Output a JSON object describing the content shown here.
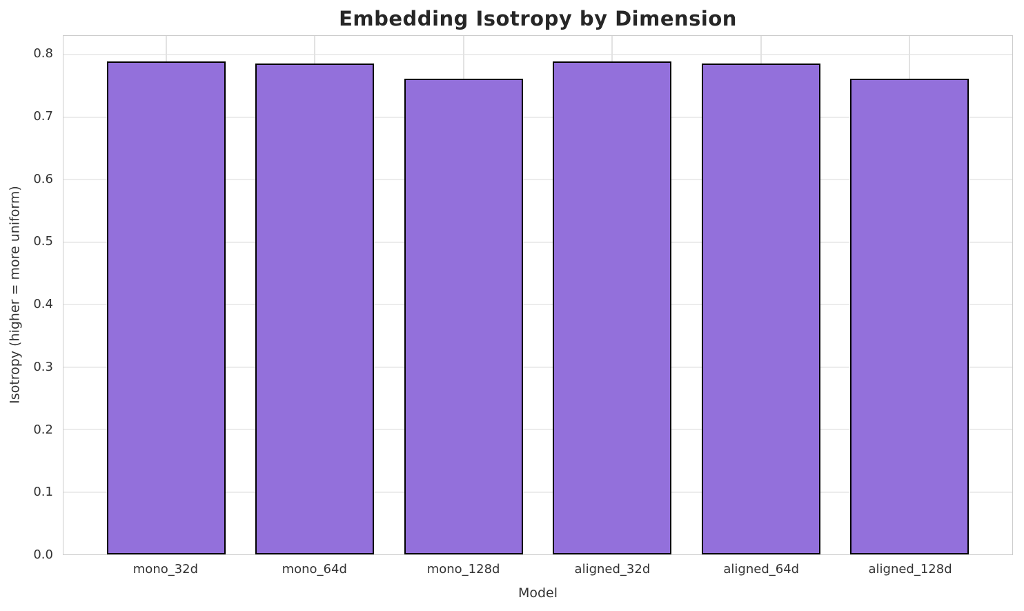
{
  "chart_data": {
    "type": "bar",
    "title": "Embedding Isotropy by Dimension",
    "xlabel": "Model",
    "ylabel": "Isotropy (higher = more uniform)",
    "categories": [
      "mono_32d",
      "mono_64d",
      "mono_128d",
      "aligned_32d",
      "aligned_64d",
      "aligned_128d"
    ],
    "values": [
      0.789,
      0.786,
      0.762,
      0.789,
      0.786,
      0.762
    ],
    "ylim": [
      0,
      0.83
    ],
    "yticks": [
      0.0,
      0.1,
      0.2,
      0.3,
      0.4,
      0.5,
      0.6,
      0.7,
      0.8
    ],
    "grid": true,
    "legend": "none",
    "bar_fill_color": "#9370DB",
    "bar_edge_color": "#000000",
    "grid_color": "#ececec",
    "spine_color": "#cccccc",
    "title_color": "#262626",
    "tick_label_color": "#333333"
  }
}
